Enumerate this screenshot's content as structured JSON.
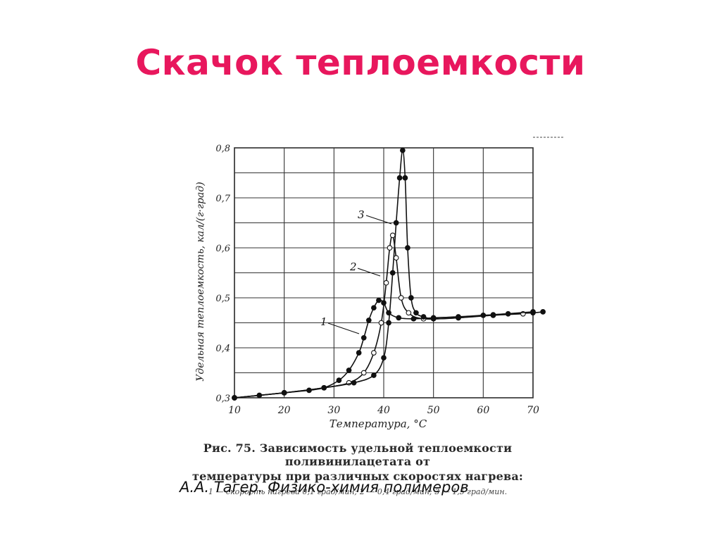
{
  "slide": {
    "title": "Скачок теплоемкости",
    "title_color": "#e8175d",
    "attribution": "А.А. Тагер. Физико-химия полимеров"
  },
  "figure": {
    "caption_line1": "Рис. 75. Зависимость удельной теплоемкости поливинилацетата от",
    "caption_line2": "температуры при различных скоростях нагрева:",
    "caption_line3": "1 — скорость нагрева 0,1 град/мин;  2 — 0,4 град/мин;  3 — 1,5 град/мин."
  },
  "chart_data": {
    "type": "line",
    "title": "",
    "xlabel": "Температура, °С",
    "ylabel": "Удельная теплоемкость, кал/(г·град)",
    "xlim": [
      10,
      70
    ],
    "ylim": [
      0.3,
      0.8
    ],
    "x_ticks": [
      "10",
      "20",
      "30",
      "40",
      "50",
      "60",
      "70"
    ],
    "y_ticks": [
      "0,3",
      "0,4",
      "0,5",
      "0,6",
      "0,7",
      "0,8"
    ],
    "grid": true,
    "series": [
      {
        "name": "1",
        "marker": "filled",
        "x": [
          10,
          15,
          20,
          25,
          28,
          31,
          33,
          35,
          36,
          37,
          38,
          39,
          40,
          41,
          43,
          46,
          50,
          55,
          60,
          65,
          70,
          72
        ],
        "y": [
          0.3,
          0.305,
          0.31,
          0.315,
          0.32,
          0.335,
          0.355,
          0.39,
          0.42,
          0.455,
          0.48,
          0.495,
          0.49,
          0.47,
          0.46,
          0.458,
          0.46,
          0.462,
          0.465,
          0.468,
          0.47,
          0.472
        ]
      },
      {
        "name": "2",
        "marker": "open",
        "x": [
          10,
          20,
          28,
          33,
          36,
          38,
          39.5,
          40.5,
          41.2,
          41.8,
          42.5,
          43.5,
          45,
          48,
          55,
          62,
          68
        ],
        "y": [
          0.3,
          0.31,
          0.32,
          0.33,
          0.35,
          0.39,
          0.45,
          0.53,
          0.6,
          0.625,
          0.58,
          0.5,
          0.47,
          0.458,
          0.46,
          0.465,
          0.468
        ]
      },
      {
        "name": "3",
        "marker": "filled",
        "x": [
          10,
          20,
          28,
          34,
          38,
          40,
          41,
          41.8,
          42.5,
          43.2,
          43.8,
          44.3,
          44.8,
          45.5,
          46.5,
          48,
          50,
          55,
          62,
          70
        ],
        "y": [
          0.3,
          0.31,
          0.32,
          0.33,
          0.345,
          0.38,
          0.45,
          0.55,
          0.65,
          0.74,
          0.795,
          0.74,
          0.6,
          0.5,
          0.47,
          0.462,
          0.458,
          0.46,
          0.466,
          0.472
        ]
      }
    ],
    "series_labels": [
      "1",
      "2",
      "3"
    ]
  }
}
